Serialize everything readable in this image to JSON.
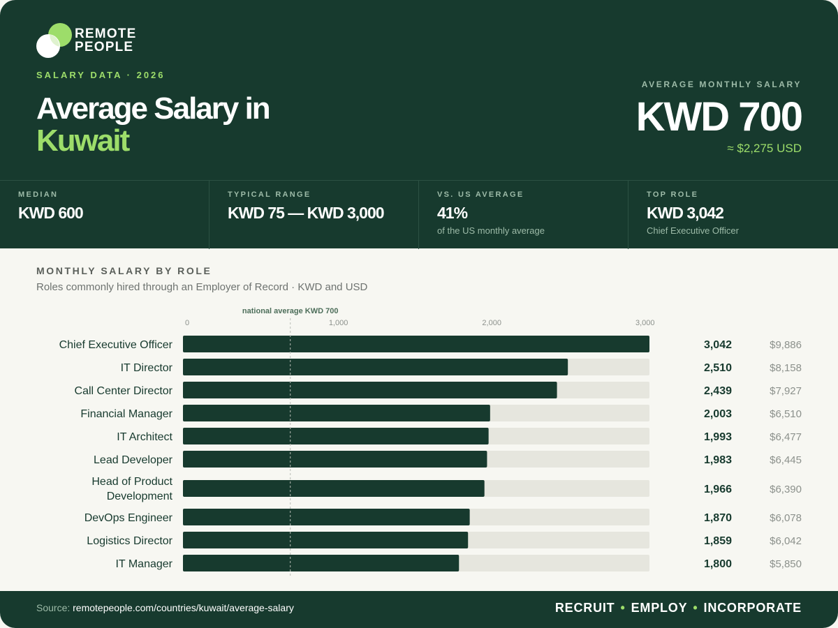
{
  "brand": {
    "line1": "REMOTE",
    "line2": "PEOPLE"
  },
  "header": {
    "eyebrow": "SALARY DATA · 2026",
    "title_line1": "Average Salary in",
    "title_line2": "Kuwait",
    "avg_label": "AVERAGE MONTHLY SALARY",
    "avg_value": "KWD 700",
    "avg_usd": "≈ $2,275 USD"
  },
  "stats": [
    {
      "label": "MEDIAN",
      "value": "KWD 600",
      "sub": ""
    },
    {
      "label": "TYPICAL RANGE",
      "value": "KWD 75 — KWD 3,000",
      "sub": ""
    },
    {
      "label": "VS. US AVERAGE",
      "value": "41%",
      "sub": "of the US monthly average"
    },
    {
      "label": "TOP ROLE",
      "value": "KWD 3,042",
      "sub": "Chief Executive Officer"
    }
  ],
  "chart_data": {
    "type": "bar",
    "orientation": "horizontal",
    "title": "MONTHLY SALARY BY ROLE",
    "subtitle": "Roles commonly hired through an Employer of Record · KWD and USD",
    "xlim": [
      0,
      3042
    ],
    "ticks": [
      {
        "value": 0,
        "label": "0"
      },
      {
        "value": 1000,
        "label": "1,000"
      },
      {
        "value": 2000,
        "label": "2,000"
      },
      {
        "value": 3000,
        "label": "3,000"
      }
    ],
    "reference": {
      "value": 700,
      "label": "national average KWD 700"
    },
    "categories": [
      "Chief Executive Officer",
      "IT Director",
      "Call Center Director",
      "Financial Manager",
      "IT Architect",
      "Lead Developer",
      "Head of Product Development",
      "DevOps Engineer",
      "Logistics Director",
      "IT Manager"
    ],
    "values": [
      3042,
      2510,
      2439,
      2003,
      1993,
      1983,
      1966,
      1870,
      1859,
      1800
    ],
    "value_labels": [
      "3,042",
      "2,510",
      "2,439",
      "2,003",
      "1,993",
      "1,983",
      "1,966",
      "1,870",
      "1,859",
      "1,800"
    ],
    "usd_labels": [
      "$9,886",
      "$8,158",
      "$7,927",
      "$6,510",
      "$6,477",
      "$6,445",
      "$6,390",
      "$6,078",
      "$6,042",
      "$5,850"
    ],
    "colors": {
      "bar": "#173a2e",
      "track": "#e6e6de",
      "reference": "#b9bdb6"
    }
  },
  "footer": {
    "source_prefix": "Source:",
    "source_url": "remotepeople.com/countries/kuwait/average-salary",
    "tag1": "RECRUIT",
    "tag2": "EMPLOY",
    "tag3": "INCORPORATE",
    "separator": "•"
  }
}
